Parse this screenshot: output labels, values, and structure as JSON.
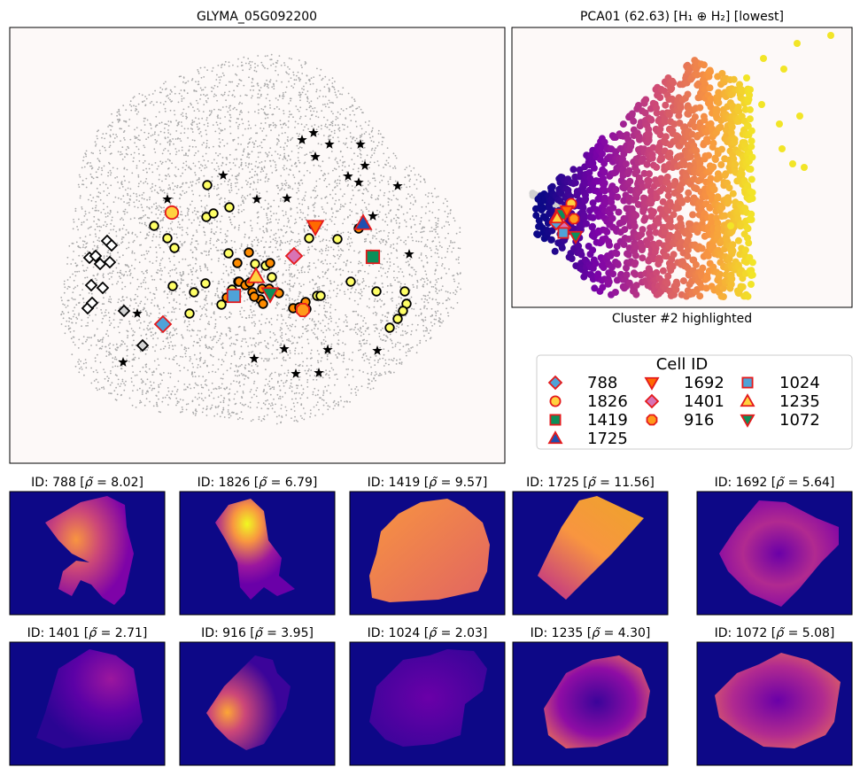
{
  "main_panel": {
    "title": "GLYMA_05G092200",
    "colors": {
      "background": "#fdf9f8",
      "dots": "#a9a9a9",
      "low": "#ffff66",
      "high": "#ff8c00"
    }
  },
  "pca_panel": {
    "title": "PCA01 (62.63) [H₁ ⊕ H₂] [lowest]",
    "xlabel": "Cluster #2 highlighted",
    "colormap": [
      "#0d0887",
      "#7e03a8",
      "#cc4778",
      "#f89540",
      "#f0f921"
    ]
  },
  "legend": {
    "title": "Cell ID",
    "entries": [
      {
        "id": "788",
        "marker": "diamond",
        "fill": "#4fa3d8"
      },
      {
        "id": "1826",
        "marker": "circle",
        "fill": "#ffd23f"
      },
      {
        "id": "1419",
        "marker": "square",
        "fill": "#0b8f5a"
      },
      {
        "id": "1725",
        "marker": "triangle-up",
        "fill": "#1f4fb0"
      },
      {
        "id": "1692",
        "marker": "triangle-down",
        "fill": "#ff6a00"
      },
      {
        "id": "1401",
        "marker": "diamond",
        "fill": "#d873b4"
      },
      {
        "id": "916",
        "marker": "octagon",
        "fill": "#ff9a1a"
      },
      {
        "id": "1024",
        "marker": "square",
        "fill": "#4fa3d8"
      },
      {
        "id": "1235",
        "marker": "triangle-up",
        "fill": "#ffd23f"
      },
      {
        "id": "1072",
        "marker": "triangle-down",
        "fill": "#0b8f5a"
      }
    ]
  },
  "cells": [
    {
      "id": "788",
      "rho": "8.02"
    },
    {
      "id": "1826",
      "rho": "6.79"
    },
    {
      "id": "1419",
      "rho": "9.57"
    },
    {
      "id": "1725",
      "rho": "11.56"
    },
    {
      "id": "1692",
      "rho": "5.64"
    },
    {
      "id": "1401",
      "rho": "2.71"
    },
    {
      "id": "916",
      "rho": "3.95"
    },
    {
      "id": "1024",
      "rho": "2.03"
    },
    {
      "id": "1235",
      "rho": "4.30"
    },
    {
      "id": "1072",
      "rho": "5.08"
    }
  ],
  "chart_data": {
    "type": "scatter",
    "title": "PCA01 (62.63) [H₁ ⊕ H₂] [lowest]",
    "xlabel": "Cluster #2 highlighted",
    "series": [
      {
        "name": "Cluster #2",
        "values": [
          "788",
          "1826",
          "1419",
          "1725",
          "1692",
          "1401",
          "916",
          "1024",
          "1235",
          "1072"
        ]
      }
    ]
  }
}
